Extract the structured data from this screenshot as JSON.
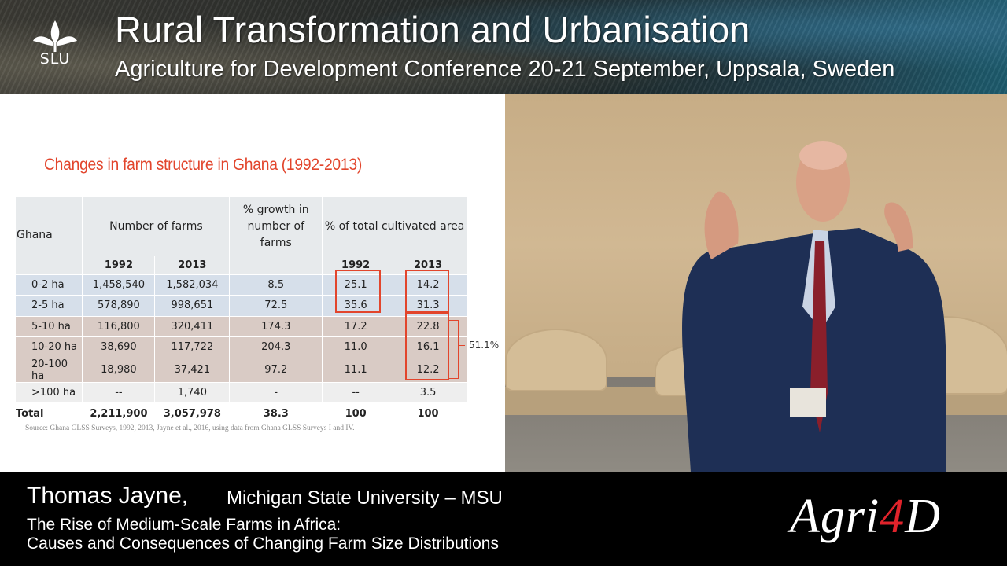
{
  "header": {
    "logo_text": "SLU",
    "title": "Rural Transformation and Urbanisation",
    "subtitle": "Agriculture for Development Conference 20-21 September, Uppsala, Sweden"
  },
  "slide": {
    "title": "Changes in farm structure in Ghana (1992-2013)",
    "table": {
      "corner_label": "Ghana",
      "group_headers": {
        "num_farms": "Number of farms",
        "growth": "% growth in number of farms",
        "cultivated": "% of total cultivated area"
      },
      "years": [
        "1992",
        "2013",
        "1992",
        "2013"
      ],
      "rows": [
        {
          "label": "0-2 ha",
          "f1992": "1,458,540",
          "f2013": "1,582,034",
          "growth": "8.5",
          "a1992": "25.1",
          "a2013": "14.2",
          "style": "blue"
        },
        {
          "label": "2-5 ha",
          "f1992": "578,890",
          "f2013": "998,651",
          "growth": "72.5",
          "a1992": "35.6",
          "a2013": "31.3",
          "style": "blue"
        },
        {
          "label": "5-10 ha",
          "f1992": "116,800",
          "f2013": "320,411",
          "growth": "174.3",
          "a1992": "17.2",
          "a2013": "22.8",
          "style": "tan"
        },
        {
          "label": "10-20 ha",
          "f1992": "38,690",
          "f2013": "117,722",
          "growth": "204.3",
          "a1992": "11.0",
          "a2013": "16.1",
          "style": "tan"
        },
        {
          "label": "20-100 ha",
          "f1992": "18,980",
          "f2013": "37,421",
          "growth": "97.2",
          "a1992": "11.1",
          "a2013": "12.2",
          "style": "tan"
        },
        {
          "label": ">100 ha",
          "f1992": "--",
          "f2013": "1,740",
          "growth": "-",
          "a1992": "--",
          "a2013": "3.5",
          "style": "grey"
        },
        {
          "label": "Total",
          "f1992": "2,211,900",
          "f2013": "3,057,978",
          "growth": "38.3",
          "a1992": "100",
          "a2013": "100",
          "style": "total"
        }
      ]
    },
    "bracket_label": "51.1%",
    "source": "Source: Ghana GLSS Surveys, 1992, 2013, Jayne et al., 2016, using data from Ghana GLSS Surveys I and IV."
  },
  "lower_third": {
    "speaker_name": "Thomas Jayne,",
    "affiliation": "Michigan State University – MSU",
    "talk_title_line1": "The Rise of Medium-Scale Farms in Africa:",
    "talk_title_line2": "Causes and Consequences of Changing Farm Size Distributions",
    "brand_part1": "Agri",
    "brand_part2": "4",
    "brand_part3": "D"
  },
  "colors": {
    "accent_red": "#e2452c",
    "brand_red": "#e0232b",
    "row_blue": "#d6dfea",
    "row_tan": "#d9cbc5"
  }
}
